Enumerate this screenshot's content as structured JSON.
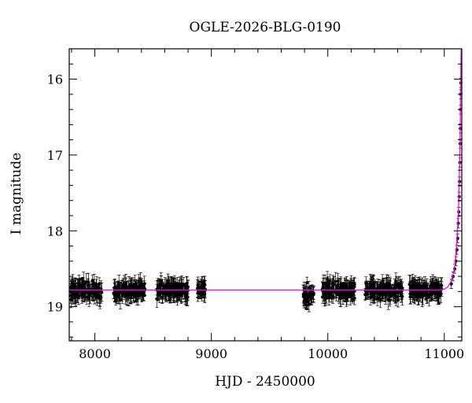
{
  "chart_data": {
    "type": "scatter",
    "title": "OGLE-2026-BLG-0190",
    "xlabel": "HJD - 2450000",
    "ylabel": "I magnitude",
    "xlim": [
      7780,
      11150
    ],
    "ylim": [
      19.45,
      15.6
    ],
    "y_inverted": true,
    "x_ticks": [
      8000,
      9000,
      10000,
      11000
    ],
    "y_ticks": [
      16,
      17,
      18,
      19
    ],
    "grid": false,
    "legend": "none",
    "colors": {
      "data": "#000000",
      "model": "#ff00ff"
    },
    "series": [
      {
        "kind": "points_with_errorbars",
        "seasons": [
          {
            "x": [
              7790,
              8060
            ],
            "mag": 18.78,
            "scatter": 0.13,
            "err": 0.1
          },
          {
            "x": [
              8160,
              8430
            ],
            "mag": 18.78,
            "scatter": 0.13,
            "err": 0.1
          },
          {
            "x": [
              8530,
              8800
            ],
            "mag": 18.78,
            "scatter": 0.13,
            "err": 0.1
          },
          {
            "x": [
              8880,
              8950
            ],
            "mag": 18.76,
            "scatter": 0.09,
            "err": 0.1
          },
          {
            "x": [
              9790,
              9880
            ],
            "mag": 18.85,
            "scatter": 0.15,
            "err": 0.1
          },
          {
            "x": [
              9950,
              10230
            ],
            "mag": 18.78,
            "scatter": 0.13,
            "err": 0.1
          },
          {
            "x": [
              10320,
              10640
            ],
            "mag": 18.78,
            "scatter": 0.13,
            "err": 0.1
          },
          {
            "x": [
              10700,
              10980
            ],
            "mag": 18.78,
            "scatter": 0.13,
            "err": 0.1
          }
        ],
        "rising_points": [
          [
            11060,
            18.7
          ],
          [
            11075,
            18.6
          ],
          [
            11090,
            18.5
          ],
          [
            11100,
            18.4
          ],
          [
            11108,
            18.25
          ],
          [
            11115,
            18.1
          ],
          [
            11120,
            17.9
          ],
          [
            11124,
            17.75
          ],
          [
            11128,
            17.55
          ],
          [
            11131,
            17.35
          ],
          [
            11134,
            17.1
          ],
          [
            11136,
            16.85
          ],
          [
            11138,
            16.65
          ],
          [
            11140,
            16.4
          ],
          [
            11141,
            16.2
          ],
          [
            11142,
            16.05
          ]
        ]
      },
      {
        "kind": "model_line",
        "baseline": 18.78,
        "points": [
          [
            7780,
            18.78
          ],
          [
            10950,
            18.78
          ],
          [
            11000,
            18.77
          ],
          [
            11030,
            18.74
          ],
          [
            11060,
            18.66
          ],
          [
            11080,
            18.55
          ],
          [
            11095,
            18.4
          ],
          [
            11105,
            18.2
          ],
          [
            11115,
            17.95
          ],
          [
            11122,
            17.7
          ],
          [
            11128,
            17.4
          ],
          [
            11133,
            17.0
          ],
          [
            11137,
            16.6
          ],
          [
            11140,
            16.2
          ],
          [
            11143,
            15.75
          ],
          [
            11145,
            15.6
          ]
        ]
      }
    ]
  }
}
